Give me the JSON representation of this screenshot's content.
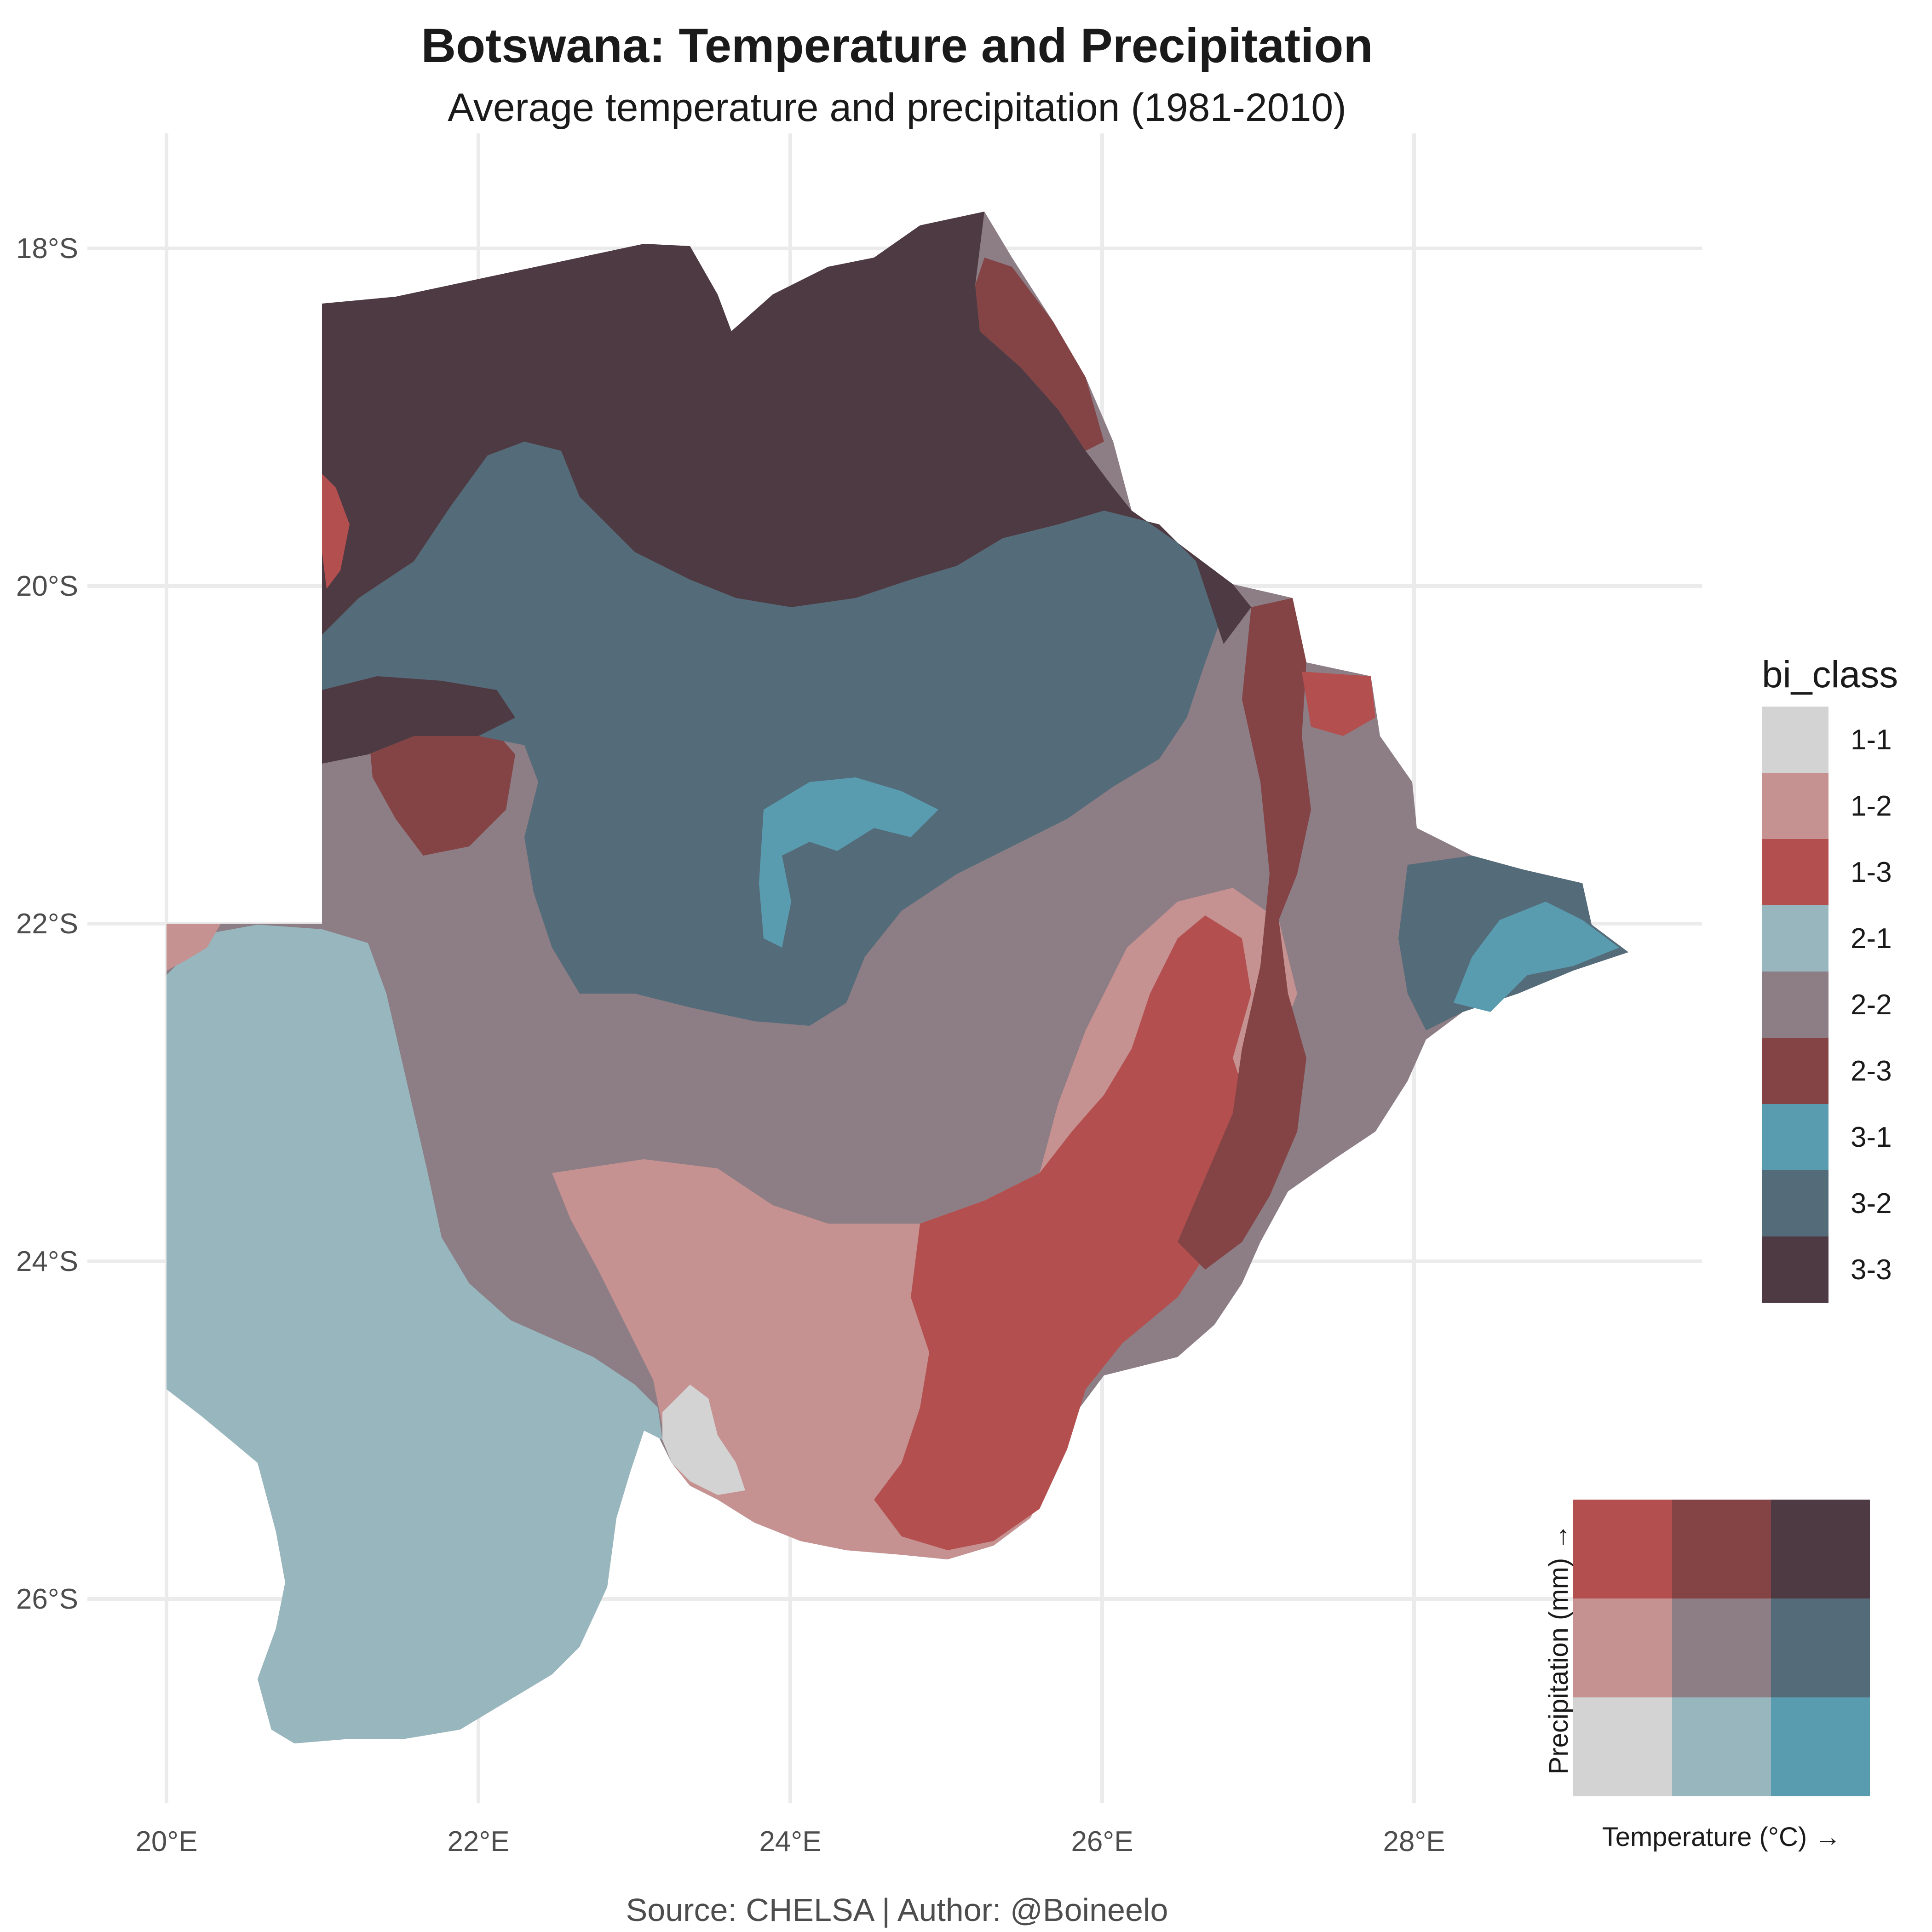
{
  "title": "Botswana: Temperature and Precipitation",
  "subtitle": "Average temperature and precipitation (1981-2010)",
  "caption": "Source: CHELSA | Author: @Boineelo",
  "axes": {
    "x_ticks": [
      "20°E",
      "22°E",
      "24°E",
      "26°E",
      "28°E"
    ],
    "y_ticks": [
      "18°S",
      "20°S",
      "22°S",
      "24°S",
      "26°S"
    ]
  },
  "legend": {
    "title": "bi_class",
    "items": [
      {
        "label": "1-1",
        "color": "#d3d3d3"
      },
      {
        "label": "1-2",
        "color": "#c59291"
      },
      {
        "label": "1-3",
        "color": "#b44f4f"
      },
      {
        "label": "2-1",
        "color": "#97b6be"
      },
      {
        "label": "2-2",
        "color": "#8d7d85"
      },
      {
        "label": "2-3",
        "color": "#844446"
      },
      {
        "label": "3-1",
        "color": "#5a9caf"
      },
      {
        "label": "3-2",
        "color": "#546b79"
      },
      {
        "label": "3-3",
        "color": "#4d3a42"
      }
    ]
  },
  "key": {
    "x_label": "Temperature (°C) →",
    "y_label": "Precipitation (mm) →",
    "grid_rows_top_to_bottom": [
      [
        "1-3",
        "2-3",
        "3-3"
      ],
      [
        "1-2",
        "2-2",
        "3-2"
      ],
      [
        "1-1",
        "2-1",
        "3-1"
      ]
    ]
  }
}
